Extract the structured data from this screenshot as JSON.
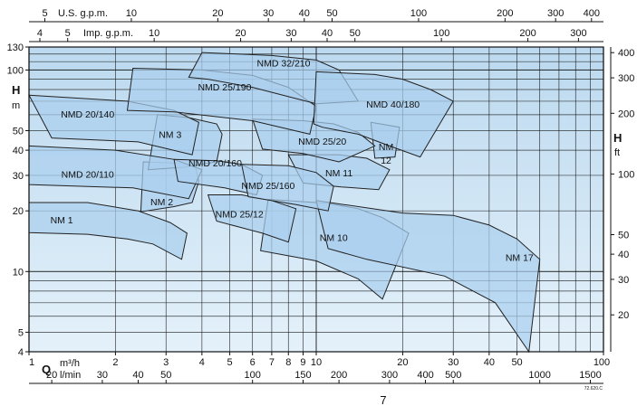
{
  "page_number": "7",
  "reference_code": "72.620.C",
  "chart_data": {
    "type": "area",
    "title": "",
    "x_scale": "log",
    "y_scale": "log",
    "xlim": [
      1,
      100
    ],
    "ylim": [
      4,
      130
    ],
    "grid": true,
    "colors": {
      "plot_bg_top": "#bcd9ef",
      "plot_bg_bottom": "#e4f1fa",
      "region_fill": "#a9cfee",
      "region_stroke": "#222222",
      "grid": "#111111"
    },
    "axes": {
      "bottom_q": {
        "symbol": "Q",
        "unit": "m³/h",
        "ticks": [
          "1",
          "2",
          "3",
          "4",
          "5",
          "6",
          "7",
          "8",
          "9",
          "10",
          "20",
          "30",
          "40",
          "50",
          "100"
        ],
        "values": [
          1,
          2,
          3,
          4,
          5,
          6,
          7,
          8,
          9,
          10,
          20,
          30,
          40,
          50,
          100
        ]
      },
      "bottom_lmin": {
        "unit": "l/min",
        "ticks": [
          "20",
          "30",
          "40",
          "50",
          "100",
          "150",
          "200",
          "300",
          "400",
          "500",
          "1000",
          "1500"
        ],
        "values": [
          20,
          30,
          40,
          50,
          100,
          150,
          200,
          300,
          400,
          500,
          1000,
          1500
        ]
      },
      "top_usgpm": {
        "unit": "U.S. g.p.m.",
        "ticks": [
          "5",
          "10",
          "20",
          "30",
          "40",
          "50",
          "100",
          "200",
          "300",
          "400"
        ],
        "values": [
          5,
          10,
          20,
          30,
          40,
          50,
          100,
          200,
          300,
          400
        ]
      },
      "top_impgpm": {
        "unit": "Imp. g.p.m.",
        "ticks": [
          "4",
          "5",
          "10",
          "20",
          "30",
          "40",
          "50",
          "100",
          "200",
          "300"
        ],
        "values": [
          4,
          5,
          10,
          20,
          30,
          40,
          50,
          100,
          200,
          300
        ]
      },
      "left_h_m": {
        "symbol": "H",
        "unit": "m",
        "ticks": [
          "4",
          "5",
          "10",
          "20",
          "30",
          "40",
          "50",
          "100",
          "130"
        ],
        "values": [
          4,
          5,
          10,
          20,
          30,
          40,
          50,
          100,
          130
        ]
      },
      "right_h_ft": {
        "symbol": "H",
        "unit": "ft",
        "ticks": [
          "20",
          "30",
          "40",
          "50",
          "100",
          "200",
          "300",
          "400"
        ],
        "values": [
          20,
          30,
          40,
          50,
          100,
          200,
          300,
          400
        ]
      }
    },
    "series": [
      {
        "name": "NM 1",
        "label_at": [
          1.3,
          17.3
        ],
        "polygon": [
          [
            1,
            22
          ],
          [
            1.6,
            22
          ],
          [
            2.4,
            20
          ],
          [
            3.1,
            17.5
          ],
          [
            3.55,
            15.5
          ],
          [
            3.4,
            11.5
          ],
          [
            2.7,
            13.7
          ],
          [
            2.2,
            14.5
          ],
          [
            1.6,
            15.3
          ],
          [
            1,
            15.6
          ]
        ]
      },
      {
        "name": "NM 2",
        "label_at": [
          2.9,
          21.3
        ],
        "polygon": [
          [
            2.5,
            35
          ],
          [
            3.3,
            34.5
          ],
          [
            3.8,
            33
          ],
          [
            3.9,
            28
          ],
          [
            3.7,
            22
          ],
          [
            3.2,
            21
          ],
          [
            2.45,
            19.8
          ]
        ]
      },
      {
        "name": "NM 3",
        "label_at": [
          3.1,
          46
        ],
        "polygon": [
          [
            2.8,
            60
          ],
          [
            3.6,
            58
          ],
          [
            4.5,
            54
          ],
          [
            4.7,
            48
          ],
          [
            4.5,
            35
          ],
          [
            3.5,
            33
          ],
          [
            2.6,
            32
          ]
        ]
      },
      {
        "name": "NM 10",
        "label_at": [
          11.5,
          14.2
        ],
        "polygon": [
          [
            6.8,
            22.8
          ],
          [
            11,
            21.8
          ],
          [
            14,
            20.5
          ],
          [
            17,
            18.5
          ],
          [
            21,
            15.5
          ],
          [
            17,
            7.3
          ],
          [
            14,
            9.2
          ],
          [
            10,
            11.3
          ],
          [
            6.4,
            12.7
          ]
        ]
      },
      {
        "name": "NM 11",
        "label_at": [
          12,
          29.6
        ],
        "polygon": [
          [
            8,
            38
          ],
          [
            12,
            38
          ],
          [
            15,
            36.5
          ],
          [
            18,
            32
          ],
          [
            16.5,
            25.5
          ],
          [
            12.2,
            26.3
          ],
          [
            9,
            27.5
          ]
        ]
      },
      {
        "name": "NM 12",
        "label_at": [
          17.5,
          40
        ],
        "polygon": [
          [
            15.5,
            55
          ],
          [
            19.5,
            52
          ],
          [
            18.8,
            37
          ],
          [
            16,
            36.5
          ]
        ]
      },
      {
        "name": "NM 17",
        "label_at": [
          51,
          11.3
        ],
        "polygon": [
          [
            10,
            22.5
          ],
          [
            20,
            19.5
          ],
          [
            30,
            19
          ],
          [
            40,
            17
          ],
          [
            50,
            14.5
          ],
          [
            60,
            11.5
          ],
          [
            55,
            4
          ],
          [
            42,
            7
          ],
          [
            28,
            9.5
          ],
          [
            15,
            11.5
          ],
          [
            11,
            13
          ]
        ]
      },
      {
        "name": "NMD 20/110",
        "label_at": [
          1.6,
          29.2
        ],
        "polygon": [
          [
            1,
            42
          ],
          [
            2,
            40
          ],
          [
            3.2,
            36
          ],
          [
            4,
            32
          ],
          [
            3.6,
            23
          ],
          [
            2.3,
            26
          ],
          [
            1,
            27
          ]
        ]
      },
      {
        "name": "NMD 20/140",
        "label_at": [
          1.6,
          58
        ],
        "polygon": [
          [
            1,
            75
          ],
          [
            2.2,
            70
          ],
          [
            3.2,
            63
          ],
          [
            3.9,
            55
          ],
          [
            3.7,
            38
          ],
          [
            2.4,
            44
          ],
          [
            1.2,
            46
          ]
        ]
      },
      {
        "name": "NMD 20/160",
        "label_at": [
          4.45,
          33.2
        ],
        "polygon": [
          [
            3.2,
            36
          ],
          [
            4.5,
            35.5
          ],
          [
            5.5,
            34
          ],
          [
            6.5,
            30
          ],
          [
            6.2,
            24
          ],
          [
            4.8,
            26
          ],
          [
            3.3,
            28
          ]
        ]
      },
      {
        "name": "NMD 25/12",
        "label_at": [
          5.4,
          18.5
        ],
        "polygon": [
          [
            4.2,
            24
          ],
          [
            5.5,
            24
          ],
          [
            7,
            22.5
          ],
          [
            8.5,
            20.5
          ],
          [
            8,
            14
          ],
          [
            6.5,
            15.5
          ],
          [
            4.5,
            17.8
          ]
        ]
      },
      {
        "name": "NMD 25/160",
        "label_at": [
          6.8,
          25.7
        ],
        "polygon": [
          [
            5.5,
            34
          ],
          [
            8,
            33.5
          ],
          [
            10,
            31
          ],
          [
            11.5,
            26.5
          ],
          [
            11,
            20
          ],
          [
            8.5,
            21.5
          ],
          [
            5.8,
            23.5
          ]
        ]
      },
      {
        "name": "NMD 25/20",
        "label_at": [
          10.5,
          42.5
        ],
        "polygon": [
          [
            6,
            57
          ],
          [
            9,
            56
          ],
          [
            11.5,
            54
          ],
          [
            14,
            49
          ],
          [
            16,
            42
          ],
          [
            12,
            35
          ],
          [
            9,
            38.5
          ],
          [
            6.5,
            40.5
          ]
        ]
      },
      {
        "name": "NMD 25/190",
        "label_at": [
          4.8,
          79
        ],
        "polygon": [
          [
            2.3,
            102
          ],
          [
            4,
            100
          ],
          [
            6,
            94
          ],
          [
            8,
            82
          ],
          [
            10,
            66
          ],
          [
            9.5,
            48
          ],
          [
            6,
            56
          ],
          [
            3.2,
            62
          ],
          [
            2.2,
            63
          ]
        ]
      },
      {
        "name": "NMD 32/210",
        "label_at": [
          7.7,
          104
        ],
        "polygon": [
          [
            4,
            122
          ],
          [
            7,
            118
          ],
          [
            10,
            112
          ],
          [
            12,
            100
          ],
          [
            14,
            70
          ],
          [
            10,
            68
          ],
          [
            6,
            82
          ],
          [
            4.2,
            90
          ],
          [
            3.6,
            92
          ]
        ]
      },
      {
        "name": "NMD 40/180",
        "label_at": [
          18.5,
          65
        ],
        "polygon": [
          [
            10,
            98
          ],
          [
            16,
            95
          ],
          [
            20,
            90
          ],
          [
            25,
            80
          ],
          [
            30,
            70
          ],
          [
            23,
            37
          ],
          [
            18,
            42
          ],
          [
            14,
            48
          ],
          [
            10.5,
            52
          ],
          [
            9.8,
            54
          ]
        ]
      }
    ]
  }
}
